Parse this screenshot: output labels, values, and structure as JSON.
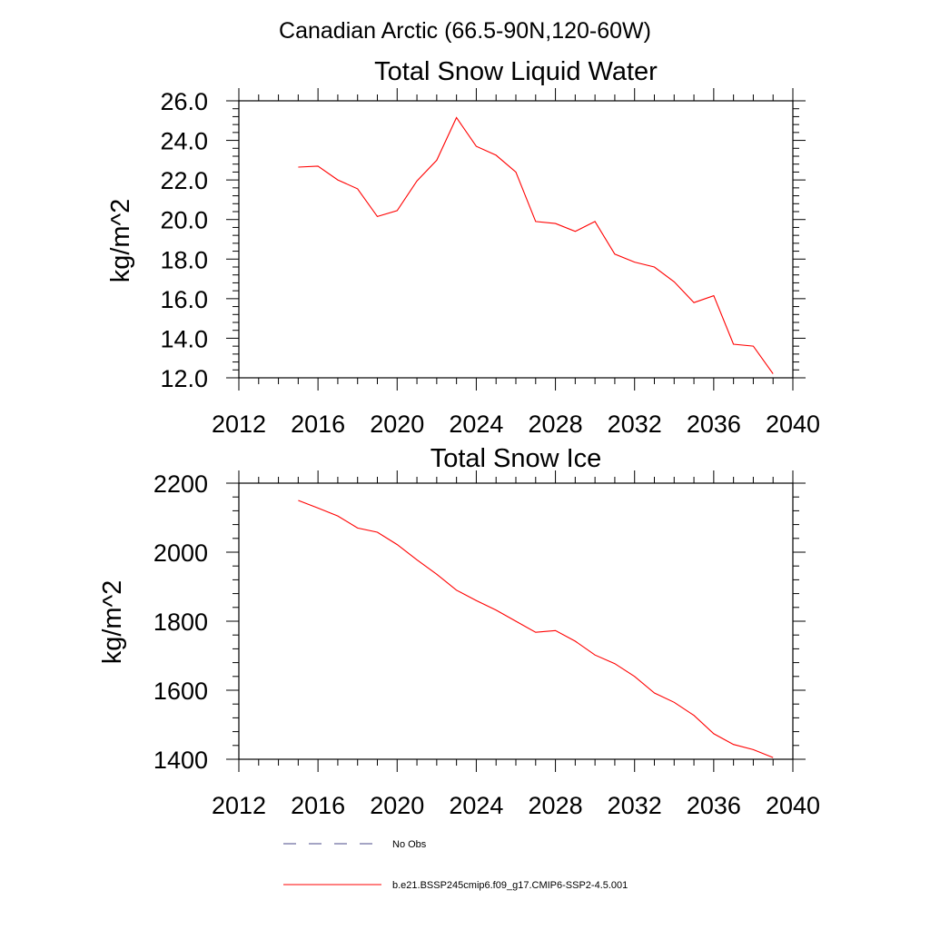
{
  "figure": {
    "suptitle": "Canadian Arctic (66.5-90N,120-60W)"
  },
  "chart_data": [
    {
      "type": "line",
      "title": "Total Snow Liquid Water",
      "xlabel": "",
      "ylabel": "kg/m^2",
      "xlim": [
        2012,
        2040
      ],
      "ylim": [
        12.0,
        26.0
      ],
      "xticks": [
        "2012",
        "2016",
        "2020",
        "2024",
        "2028",
        "2032",
        "2036",
        "2040"
      ],
      "yticks": [
        "12.0",
        "14.0",
        "16.0",
        "18.0",
        "20.0",
        "22.0",
        "24.0",
        "26.0"
      ],
      "x": [
        2015,
        2016,
        2017,
        2018,
        2019,
        2020,
        2021,
        2022,
        2023,
        2024,
        2025,
        2026,
        2027,
        2028,
        2029,
        2030,
        2031,
        2032,
        2033,
        2034,
        2035,
        2036,
        2037,
        2038,
        2039
      ],
      "series": [
        {
          "name": "b.e21.BSSP245cmip6.f09_g17.CMIP6-SSP2-4.5.001",
          "color": "#ff0000",
          "values": [
            22.65,
            22.7,
            22.0,
            21.55,
            20.15,
            20.45,
            21.95,
            23.0,
            25.15,
            23.7,
            23.25,
            22.4,
            19.9,
            19.8,
            19.4,
            19.9,
            18.25,
            17.85,
            17.6,
            16.85,
            15.8,
            16.15,
            13.7,
            13.6,
            12.2
          ]
        }
      ]
    },
    {
      "type": "line",
      "title": "Total Snow Ice",
      "xlabel": "",
      "ylabel": "kg/m^2",
      "xlim": [
        2012,
        2040
      ],
      "ylim": [
        1400,
        2200
      ],
      "xticks": [
        "2012",
        "2016",
        "2020",
        "2024",
        "2028",
        "2032",
        "2036",
        "2040"
      ],
      "yticks": [
        "1400",
        "1600",
        "1800",
        "2000",
        "2200"
      ],
      "x": [
        2015,
        2016,
        2017,
        2018,
        2019,
        2020,
        2021,
        2022,
        2023,
        2024,
        2025,
        2026,
        2027,
        2028,
        2029,
        2030,
        2031,
        2032,
        2033,
        2034,
        2035,
        2036,
        2037,
        2038,
        2039
      ],
      "series": [
        {
          "name": "b.e21.BSSP245cmip6.f09_g17.CMIP6-SSP2-4.5.001",
          "color": "#ff0000",
          "values": [
            2150,
            2128,
            2105,
            2070,
            2058,
            2022,
            1978,
            1936,
            1890,
            1860,
            1832,
            1800,
            1768,
            1773,
            1742,
            1702,
            1677,
            1640,
            1592,
            1565,
            1527,
            1474,
            1443,
            1428,
            1405
          ]
        }
      ]
    }
  ],
  "legend": {
    "entries": [
      {
        "label": "No Obs",
        "color": "#4a4a8a",
        "style": "dashed"
      },
      {
        "label": "b.e21.BSSP245cmip6.f09_g17.CMIP6-SSP2-4.5.001",
        "color": "#ff0000",
        "style": "solid"
      }
    ]
  }
}
